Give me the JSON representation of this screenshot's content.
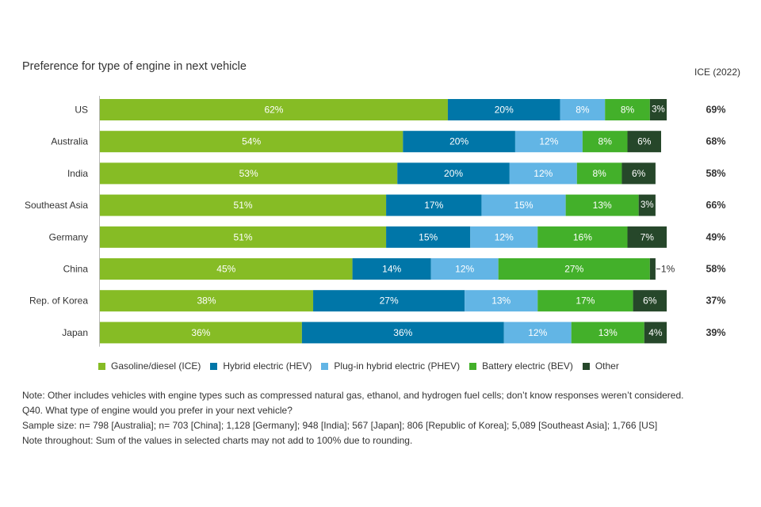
{
  "chart_data": {
    "type": "bar",
    "orientation": "horizontal",
    "stacked": true,
    "title": "Preference for type of engine in next vehicle",
    "categories": [
      "US",
      "Australia",
      "India",
      "Southeast Asia",
      "Germany",
      "China",
      "Rep. of Korea",
      "Japan"
    ],
    "series": [
      {
        "name": "Gasoline/diesel (ICE)",
        "color": "#86bc25",
        "values": [
          62,
          54,
          53,
          51,
          51,
          45,
          38,
          36
        ]
      },
      {
        "name": "Hybrid electric (HEV)",
        "color": "#0076a8",
        "values": [
          20,
          20,
          20,
          17,
          15,
          14,
          27,
          36
        ]
      },
      {
        "name": "Plug-in hybrid electric (PHEV)",
        "color": "#62b5e5",
        "values": [
          8,
          12,
          12,
          15,
          12,
          12,
          13,
          12
        ]
      },
      {
        "name": "Battery electric (BEV)",
        "color": "#43b02a",
        "values": [
          8,
          8,
          8,
          13,
          16,
          27,
          17,
          13
        ]
      },
      {
        "name": "Other",
        "color": "#26472a",
        "values": [
          3,
          6,
          6,
          3,
          7,
          1,
          6,
          4
        ]
      }
    ],
    "value_suffix": "%",
    "side_column": {
      "header": "ICE (2022)",
      "values": [
        "69%",
        "68%",
        "58%",
        "66%",
        "49%",
        "58%",
        "37%",
        "39%"
      ]
    },
    "xlim": [
      0,
      100
    ],
    "legend_position": "bottom-left"
  },
  "notes": [
    "Note: Other includes vehicles with engine types such as compressed natural gas, ethanol, and hydrogen fuel cells; don’t know responses weren’t considered.",
    "Q40. What type of engine would you prefer in your next vehicle?",
    "Sample size: n= 798 [Australia]; n= 703 [China]; 1,128 [Germany]; 948 [India]; 567 [Japan]; 806 [Republic of Korea]; 5,089 [Southeast Asia]; 1,766 [US]",
    "Note throughout: Sum of the values in selected charts may not add to 100% due to rounding."
  ]
}
